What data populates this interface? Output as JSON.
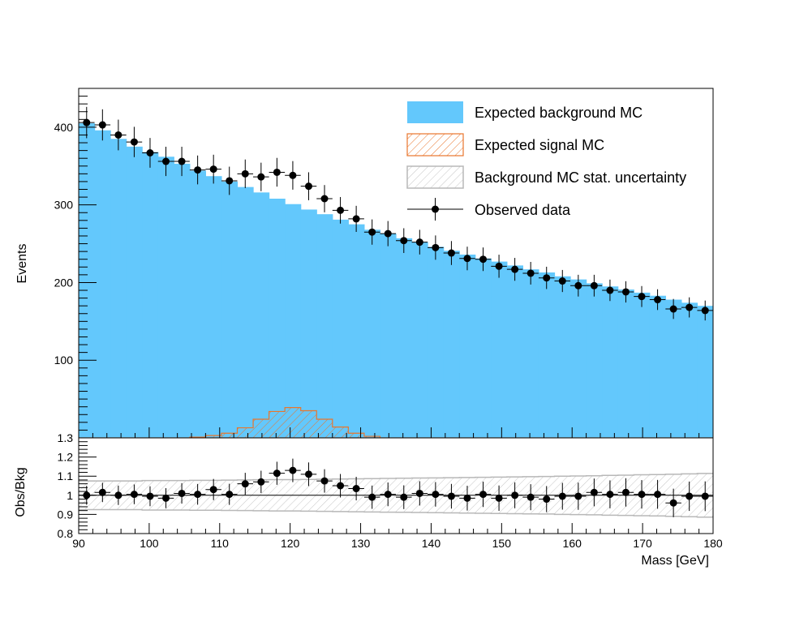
{
  "chart_data": [
    {
      "type": "bar",
      "panel": "main",
      "xlabel": "Mass [GeV]",
      "ylabel": "Events",
      "xlim": [
        90,
        180
      ],
      "ylim": [
        0,
        450
      ],
      "bin_width": 2.25,
      "x_ticks": [
        90,
        100,
        110,
        120,
        130,
        140,
        150,
        160,
        170,
        180
      ],
      "y_ticks": [
        100,
        200,
        300,
        400
      ],
      "legend_position": "top-right",
      "legend": [
        {
          "key": "background",
          "label": "Expected background MC"
        },
        {
          "key": "signal",
          "label": "Expected signal MC"
        },
        {
          "key": "uncertainty",
          "label": "Background MC stat. uncertainty"
        },
        {
          "key": "data",
          "label": "Observed data"
        }
      ],
      "bin_centers": [
        91.125,
        93.375,
        95.625,
        97.875,
        100.125,
        102.375,
        104.625,
        106.875,
        109.125,
        111.375,
        113.625,
        115.875,
        118.125,
        120.375,
        122.625,
        124.875,
        127.125,
        129.375,
        131.625,
        133.875,
        136.125,
        138.375,
        140.625,
        142.875,
        145.125,
        147.375,
        149.625,
        151.875,
        154.125,
        156.375,
        158.625,
        160.875,
        163.125,
        165.375,
        167.625,
        169.875,
        172.125,
        174.375,
        176.625,
        178.875
      ],
      "series": [
        {
          "key": "background",
          "values": [
            405,
            396,
            385,
            375,
            368,
            362,
            353,
            344,
            337,
            330,
            323,
            316,
            308,
            301,
            294,
            288,
            281,
            275,
            268,
            263,
            257,
            252,
            246,
            241,
            236,
            231,
            227,
            222,
            217,
            213,
            208,
            204,
            199,
            195,
            191,
            187,
            183,
            178,
            174,
            170
          ],
          "color": "#63c8fc"
        },
        {
          "key": "signal",
          "values": [
            0,
            0,
            0,
            0,
            0,
            0,
            0,
            1,
            3,
            6,
            13,
            24,
            34,
            39,
            35,
            24,
            14,
            6,
            2,
            0,
            0,
            0,
            0,
            0,
            0,
            0,
            0,
            0,
            0,
            0,
            0,
            0,
            0,
            0,
            0,
            0,
            0,
            0,
            0,
            0
          ],
          "color": "#e8762d"
        },
        {
          "key": "data",
          "values": [
            406,
            403,
            390,
            381,
            367,
            356,
            356,
            345,
            346,
            331,
            340,
            336,
            342,
            338,
            324,
            308,
            293,
            282,
            265,
            263,
            254,
            252,
            245,
            238,
            231,
            230,
            221,
            217,
            212,
            206,
            202,
            196,
            196,
            190,
            188,
            182,
            178,
            166,
            168,
            164
          ],
          "color": "#000000"
        }
      ]
    },
    {
      "type": "scatter",
      "panel": "ratio",
      "xlabel": "Mass [GeV]",
      "ylabel": "Obs/Bkg",
      "xlim": [
        90,
        180
      ],
      "ylim": [
        0.8,
        1.3
      ],
      "y_ticks": [
        0.8,
        0.9,
        1,
        1.1,
        1.2,
        1.3
      ],
      "reference_line": 1,
      "ratio": [
        1.0,
        1.015,
        1.0,
        1.005,
        0.995,
        0.985,
        1.01,
        1.005,
        1.03,
        1.005,
        1.06,
        1.07,
        1.115,
        1.13,
        1.11,
        1.075,
        1.05,
        1.035,
        0.99,
        1.005,
        0.99,
        1.01,
        1.005,
        0.995,
        0.985,
        1.005,
        0.985,
        1.0,
        0.99,
        0.98,
        0.995,
        0.995,
        1.015,
        1.005,
        1.015,
        1.005,
        1.005,
        0.96,
        0.995,
        0.995
      ],
      "uncertainty_halfwidth": [
        0.075,
        0.075,
        0.075,
        0.075,
        0.077,
        0.077,
        0.077,
        0.078,
        0.078,
        0.079,
        0.08,
        0.081,
        0.082,
        0.082,
        0.083,
        0.084,
        0.085,
        0.086,
        0.087,
        0.088,
        0.089,
        0.09,
        0.091,
        0.092,
        0.093,
        0.094,
        0.095,
        0.096,
        0.097,
        0.098,
        0.1,
        0.101,
        0.102,
        0.104,
        0.105,
        0.107,
        0.108,
        0.11,
        0.112,
        0.114
      ]
    }
  ]
}
